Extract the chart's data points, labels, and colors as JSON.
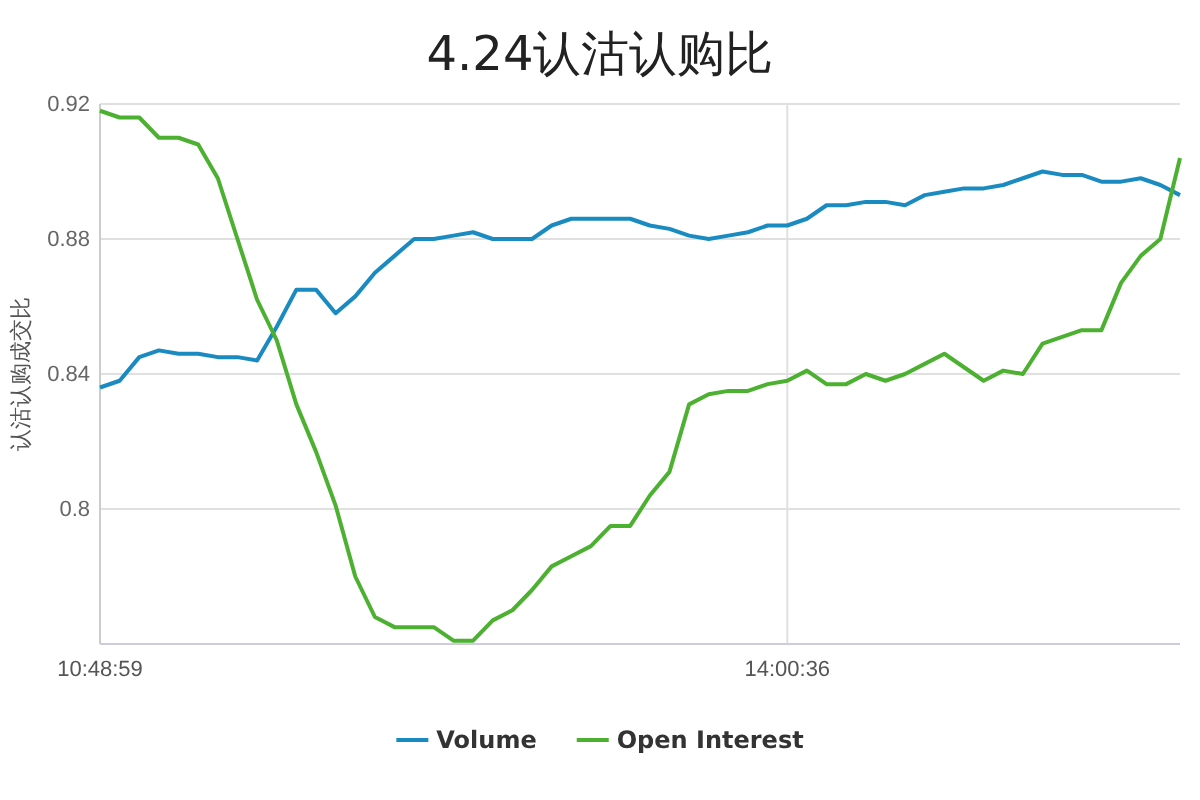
{
  "chart_data": {
    "type": "line",
    "title": "4.24认沽认购比",
    "ylabel": "认沽认购成交比",
    "categories": [
      "10:48:59",
      null,
      null,
      null,
      null,
      null,
      null,
      null,
      null,
      null,
      null,
      null,
      null,
      null,
      null,
      null,
      null,
      null,
      null,
      null,
      null,
      null,
      null,
      null,
      null,
      null,
      null,
      null,
      null,
      null,
      null,
      null,
      null,
      null,
      null,
      "14:00:36",
      null,
      null,
      null,
      null,
      null,
      null,
      null,
      null,
      null,
      null,
      null,
      null,
      null,
      null,
      null,
      null,
      null,
      null,
      null,
      null
    ],
    "series": [
      {
        "name": "Volume",
        "color": "#1a8bc0",
        "values": [
          0.836,
          0.838,
          0.845,
          0.847,
          0.846,
          0.846,
          0.845,
          0.845,
          0.844,
          0.854,
          0.865,
          0.865,
          0.858,
          0.863,
          0.87,
          0.875,
          0.88,
          0.88,
          0.881,
          0.882,
          0.88,
          0.88,
          0.88,
          0.884,
          0.886,
          0.886,
          0.886,
          0.886,
          0.884,
          0.883,
          0.881,
          0.88,
          0.881,
          0.882,
          0.884,
          0.884,
          0.886,
          0.89,
          0.89,
          0.891,
          0.891,
          0.89,
          0.893,
          0.894,
          0.895,
          0.895,
          0.896,
          0.898,
          0.9,
          0.899,
          0.899,
          0.897,
          0.897,
          0.898,
          0.896,
          0.893
        ]
      },
      {
        "name": "Open Interest",
        "color": "#4cb030",
        "values": [
          0.918,
          0.916,
          0.916,
          0.91,
          0.91,
          0.908,
          0.898,
          0.88,
          0.862,
          0.85,
          0.831,
          0.817,
          0.801,
          0.78,
          0.768,
          0.765,
          0.765,
          0.765,
          0.761,
          0.761,
          0.767,
          0.77,
          0.776,
          0.783,
          0.786,
          0.789,
          0.795,
          0.795,
          0.804,
          0.811,
          0.831,
          0.834,
          0.835,
          0.835,
          0.837,
          0.838,
          0.841,
          0.837,
          0.837,
          0.84,
          0.838,
          0.84,
          0.843,
          0.846,
          0.842,
          0.838,
          0.841,
          0.84,
          0.849,
          0.851,
          0.853,
          0.853,
          0.867,
          0.875,
          0.88,
          0.904
        ]
      }
    ],
    "ylim": [
      0.76,
      0.92
    ],
    "yticks": [
      0.8,
      0.84,
      0.88,
      0.92
    ],
    "grid": true,
    "legend": "bottom",
    "marker": "none",
    "line_style": "solid"
  }
}
